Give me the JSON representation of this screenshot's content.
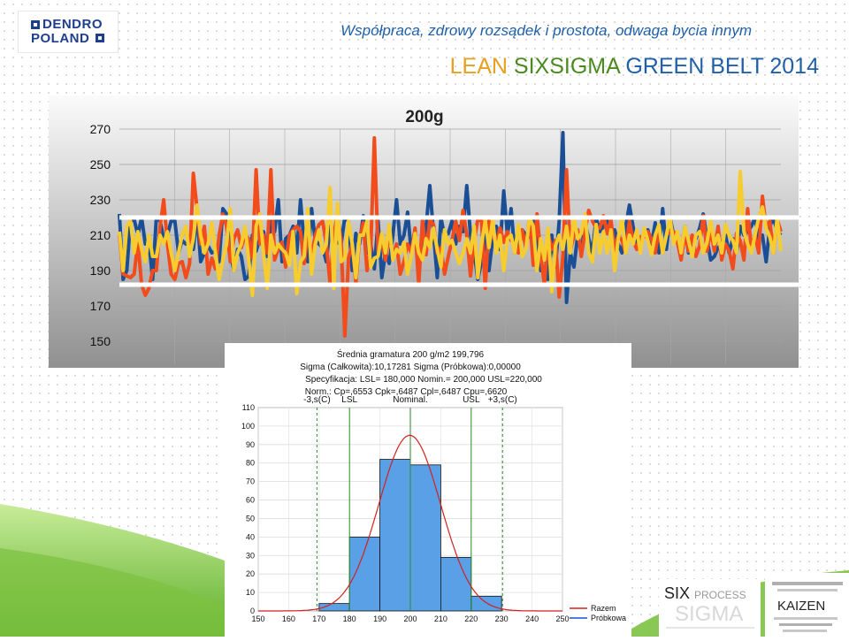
{
  "header": {
    "tagline": "Współpraca, zdrowy rozsądek i prostota, odwaga bycia innym",
    "title_part1": "LEAN ",
    "title_part2": "SIXSIGMA ",
    "title_part3": "GREEN BELT 2014",
    "logo_line1": "DENDRO",
    "logo_line2": "POLAND"
  },
  "badges": {
    "sixsigma_six": "SIX",
    "sixsigma_process": "PROCESS",
    "sixsigma_sigma": "SIGMA",
    "kaizen_word": "KAIZEN"
  },
  "colors": {
    "series_orange": "#f24b1c",
    "series_blue": "#1a4f96",
    "series_yellow": "#f6cc2e",
    "histogram_bar": "#5aa0e6",
    "normal_curve": "#d32020",
    "green_accent": "#7dc242"
  },
  "chart_data": [
    {
      "type": "line",
      "title": "200g",
      "ylim": [
        150,
        270
      ],
      "yticks": [
        270,
        250,
        230,
        210,
        190,
        170,
        150
      ],
      "grid": true,
      "reference_lines": [
        220,
        182
      ],
      "series": [
        {
          "color": "#1a4f96",
          "values": [
            222,
            185,
            190,
            218,
            219,
            210,
            220,
            205,
            206,
            185,
            220,
            218,
            208,
            210,
            218,
            218,
            200,
            207,
            205,
            205,
            202,
            222,
            195,
            200,
            204,
            200,
            201,
            195,
            225,
            222,
            200,
            190,
            202,
            198,
            185,
            187,
            210,
            201,
            208,
            212,
            198,
            218,
            212,
            230,
            195,
            208,
            210,
            215,
            200,
            230,
            205,
            195,
            225,
            207,
            205,
            203,
            195,
            215,
            204,
            206,
            205,
            220,
            218,
            190,
            211,
            205,
            221,
            200,
            205,
            191,
            218,
            186,
            200,
            194,
            210,
            230,
            205,
            210,
            223,
            200,
            212,
            192,
            204,
            215,
            238,
            211,
            186,
            220,
            209,
            211,
            218,
            205,
            215,
            212,
            238,
            210,
            200,
            185,
            195,
            210,
            190,
            208,
            215,
            202,
            235,
            210,
            225,
            200,
            202,
            213,
            210,
            209,
            218,
            205,
            190,
            192,
            185,
            210,
            192,
            218,
            268,
            172,
            200,
            192,
            210,
            200,
            217,
            208,
            200,
            220,
            212,
            215,
            218,
            206,
            213,
            205,
            200,
            215,
            227,
            215,
            203,
            206,
            210,
            213,
            205,
            217,
            200,
            225,
            202,
            220,
            210,
            206,
            199,
            215,
            200,
            208,
            208,
            214,
            222,
            208,
            196,
            198,
            203,
            205,
            210,
            200,
            208,
            200,
            215,
            210,
            212,
            215,
            220,
            208,
            210,
            195,
            215,
            220,
            212,
            210
          ]
        },
        {
          "color": "#f24b1c",
          "values": [
            210,
            188,
            187,
            186,
            188,
            206,
            182,
            176,
            180,
            190,
            190,
            215,
            230,
            205,
            188,
            185,
            194,
            195,
            186,
            194,
            245,
            225,
            205,
            215,
            188,
            197,
            191,
            210,
            222,
            215,
            195,
            208,
            213,
            203,
            210,
            208,
            197,
            247,
            205,
            210,
            200,
            247,
            196,
            202,
            206,
            192,
            210,
            213,
            215,
            212,
            194,
            211,
            198,
            210,
            216,
            218,
            205,
            183,
            210,
            222,
            207,
            153,
            197,
            205,
            183,
            208,
            217,
            190,
            202,
            265,
            201,
            206,
            196,
            212,
            198,
            205,
            188,
            195,
            205,
            200,
            214,
            182,
            219,
            199,
            219,
            216,
            200,
            203,
            188,
            198,
            207,
            218,
            207,
            224,
            210,
            187,
            207,
            219,
            218,
            180,
            218,
            210,
            205,
            214,
            206,
            212,
            207,
            205,
            200,
            213,
            203,
            220,
            193,
            222,
            199,
            182,
            211,
            202,
            207,
            175,
            198,
            247,
            201,
            210,
            213,
            198,
            212,
            224,
            218,
            214,
            214,
            221,
            211,
            219,
            200,
            210,
            207,
            200,
            218,
            207,
            202,
            209,
            209,
            212,
            208,
            200,
            213,
            200,
            210,
            212,
            212,
            206,
            196,
            211,
            201,
            210,
            198,
            204,
            221,
            201,
            213,
            201,
            215,
            196,
            205,
            201,
            191,
            211,
            207,
            196,
            225,
            202,
            210,
            200,
            232,
            214,
            218,
            200,
            219,
            212
          ]
        },
        {
          "color": "#f6cc2e",
          "values": [
            212,
            190,
            215,
            218,
            200,
            212,
            202,
            195,
            210,
            198,
            198,
            210,
            205,
            212,
            200,
            190,
            200,
            210,
            215,
            198,
            208,
            227,
            210,
            200,
            205,
            217,
            200,
            185,
            196,
            205,
            225,
            190,
            200,
            205,
            215,
            196,
            176,
            215,
            222,
            200,
            180,
            210,
            200,
            205,
            202,
            200,
            193,
            212,
            177,
            195,
            198,
            225,
            188,
            205,
            213,
            200,
            205,
            237,
            180,
            228,
            195,
            197,
            218,
            205,
            186,
            210,
            210,
            218,
            192,
            197,
            198,
            211,
            200,
            216,
            196,
            202,
            200,
            206,
            188,
            198,
            211,
            200,
            196,
            208,
            203,
            214,
            202,
            192,
            213,
            205,
            207,
            200,
            194,
            200,
            208,
            200,
            215,
            186,
            205,
            218,
            203,
            219,
            200,
            210,
            190,
            208,
            210,
            200,
            216,
            198,
            202,
            220,
            215,
            190,
            208,
            196,
            214,
            178,
            204,
            210,
            202,
            215,
            200,
            220,
            208,
            211,
            222,
            200,
            195,
            216,
            200,
            212,
            200,
            213,
            190,
            208,
            220,
            200,
            210,
            205,
            213,
            200,
            214,
            207,
            199,
            210,
            216,
            200,
            210,
            220,
            205,
            212,
            200,
            215,
            207,
            198,
            210,
            212,
            200,
            206,
            218,
            205,
            210,
            200,
            216,
            210,
            207,
            200,
            246,
            212,
            205,
            200,
            210,
            220,
            226,
            214,
            209,
            200,
            220,
            201
          ]
        }
      ]
    },
    {
      "type": "bar",
      "title": "Średnia gramatura 200 g/m2",
      "stats_lines": [
        "Średnia gramatura 200 g/m2 199,796",
        "Sigma (Całkowita):10,17281 Sigma (Próbkowa):0,00000",
        "Specyfikacja: LSL= 180,000 Nomin.= 200,000 USL=220,000",
        "Norm.: Cp=,6553 Cpk=,6487 Cpl=,6487 Cpu=,6620"
      ],
      "spec_labels": [
        "-3,s(C)",
        "LSL",
        "Nominal.",
        "USL",
        "+3,s(C)"
      ],
      "spec_values": [
        169.3,
        180,
        200,
        220,
        230.3
      ],
      "xlim": [
        150,
        250
      ],
      "xticks": [
        150,
        160,
        170,
        180,
        190,
        200,
        210,
        220,
        230,
        240,
        250
      ],
      "ylim": [
        0,
        110
      ],
      "yticks": [
        0,
        10,
        20,
        30,
        40,
        50,
        60,
        70,
        80,
        90,
        100,
        110
      ],
      "bins": [
        [
          170,
          180
        ],
        [
          180,
          190
        ],
        [
          190,
          200
        ],
        [
          200,
          210
        ],
        [
          210,
          220
        ],
        [
          220,
          230
        ]
      ],
      "values": [
        4,
        40,
        82,
        79,
        29,
        8
      ],
      "curve": {
        "mean": 199.796,
        "sigma": 10.17281,
        "peak": 95
      },
      "legend": [
        "Razem",
        "Próbkowa"
      ],
      "grid": true
    }
  ]
}
